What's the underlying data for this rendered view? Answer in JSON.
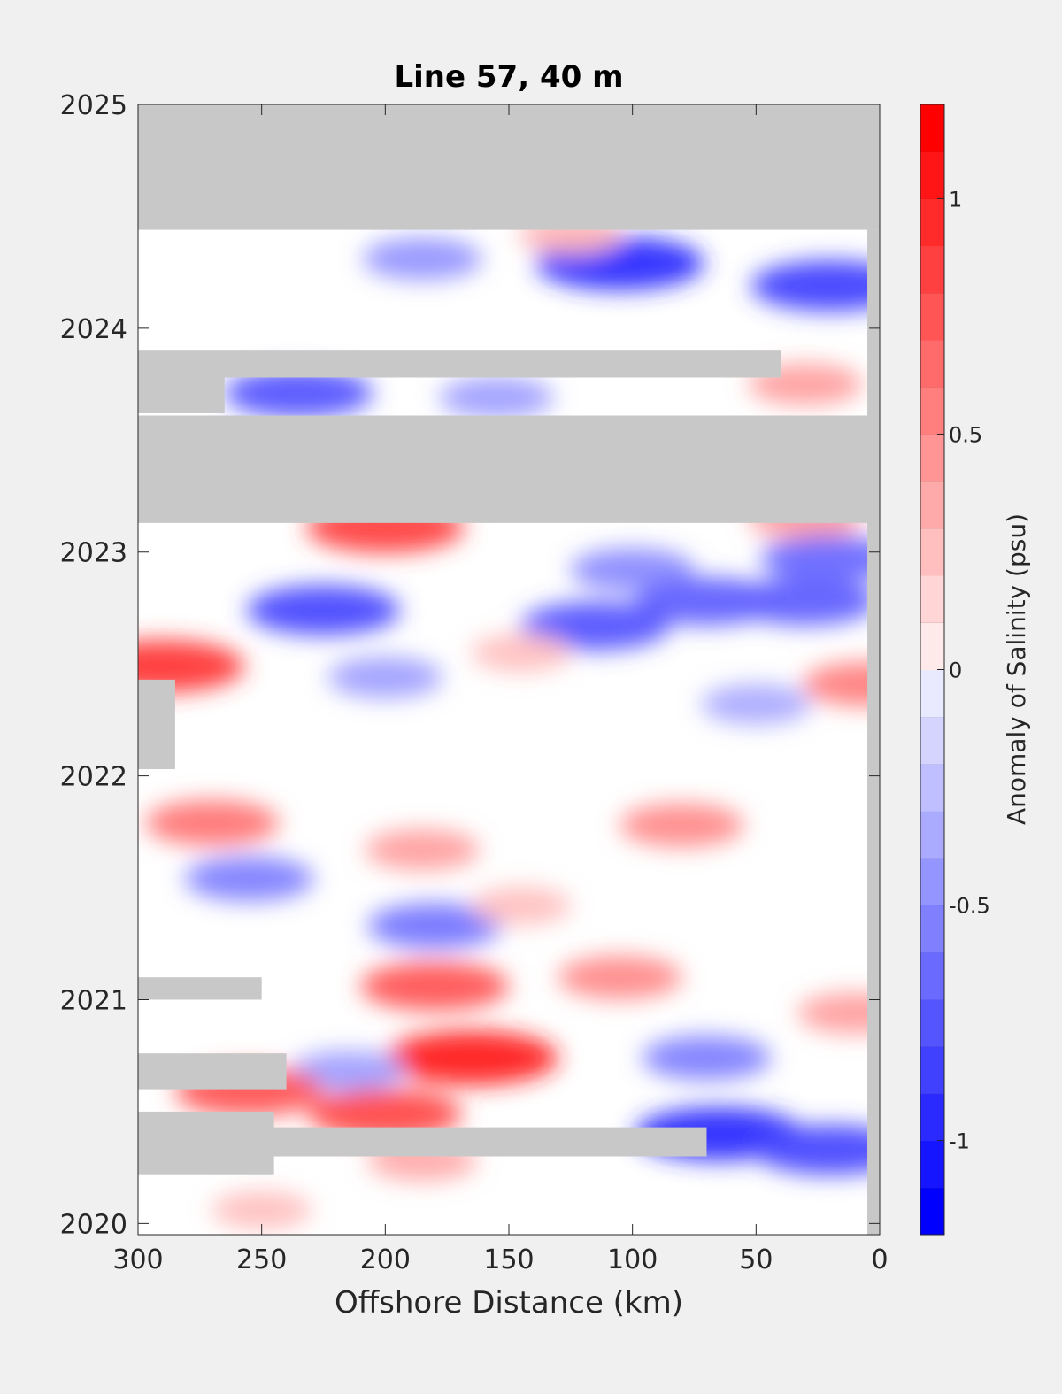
{
  "chart_data": {
    "type": "heatmap",
    "title": "Line 57, 40 m",
    "xlabel": "Offshore Distance (km)",
    "ylabel": "",
    "xlim": [
      300,
      0
    ],
    "ylim": [
      2019.95,
      2025.0
    ],
    "x_ticks": [
      300,
      250,
      200,
      150,
      100,
      50,
      0
    ],
    "y_ticks": [
      2020,
      2021,
      2022,
      2023,
      2024,
      2025
    ],
    "colorbar": {
      "label": "Anomaly of Salinity (psu)",
      "range": [
        -1.2,
        1.2
      ],
      "ticks": [
        -1,
        -0.5,
        0,
        0.5,
        1
      ],
      "tick_labels": [
        "-1",
        "-0.5",
        "0",
        "0.5",
        "1"
      ],
      "levels": 24,
      "cmap": "blue-white-red",
      "negative_color": "#0000ff",
      "zero_color": "#ffffff",
      "positive_color": "#ff0000"
    },
    "missing_color": "#c8c8c8",
    "no_data_ranges": [
      {
        "x": [
          300,
          0
        ],
        "t": [
          2024.44,
          2025.0
        ]
      },
      {
        "x": [
          300,
          0
        ],
        "t": [
          2023.13,
          2023.61
        ]
      },
      {
        "x": [
          300,
          40
        ],
        "t": [
          2023.78,
          2023.9
        ]
      },
      {
        "x": [
          300,
          265
        ],
        "t": [
          2023.62,
          2023.78
        ]
      },
      {
        "x": [
          300,
          70
        ],
        "t": [
          2020.3,
          2020.43
        ]
      },
      {
        "x": [
          300,
          245
        ],
        "t": [
          2020.22,
          2020.5
        ]
      },
      {
        "x": [
          300,
          240
        ],
        "t": [
          2020.6,
          2020.76
        ]
      },
      {
        "x": [
          300,
          250
        ],
        "t": [
          2021.0,
          2021.1
        ]
      },
      {
        "x": [
          300,
          285
        ],
        "t": [
          2022.03,
          2022.43
        ]
      },
      {
        "x": [
          5,
          0
        ],
        "t": [
          2019.95,
          2024.44
        ]
      }
    ],
    "anomaly_features": [
      {
        "x": 105,
        "t": 2024.29,
        "value": -1.0
      },
      {
        "x": 20,
        "t": 2024.19,
        "value": -0.9
      },
      {
        "x": 185,
        "t": 2024.31,
        "value": -0.5
      },
      {
        "x": 125,
        "t": 2024.42,
        "value": 0.35
      },
      {
        "x": 235,
        "t": 2023.71,
        "value": -0.8
      },
      {
        "x": 155,
        "t": 2023.69,
        "value": -0.45
      },
      {
        "x": 30,
        "t": 2023.75,
        "value": 0.45
      },
      {
        "x": 200,
        "t": 2023.11,
        "value": 0.9
      },
      {
        "x": 30,
        "t": 2023.15,
        "value": 0.45
      },
      {
        "x": 20,
        "t": 2022.97,
        "value": -0.7
      },
      {
        "x": 100,
        "t": 2022.92,
        "value": -0.55
      },
      {
        "x": 225,
        "t": 2022.74,
        "value": -0.85
      },
      {
        "x": 70,
        "t": 2022.78,
        "value": -0.75
      },
      {
        "x": 115,
        "t": 2022.67,
        "value": -0.8
      },
      {
        "x": 290,
        "t": 2022.49,
        "value": 0.95
      },
      {
        "x": 145,
        "t": 2022.55,
        "value": 0.3
      },
      {
        "x": 5,
        "t": 2022.41,
        "value": 0.6
      },
      {
        "x": 30,
        "t": 2022.78,
        "value": -0.75
      },
      {
        "x": 50,
        "t": 2022.32,
        "value": -0.4
      },
      {
        "x": 200,
        "t": 2022.44,
        "value": -0.45
      },
      {
        "x": 270,
        "t": 2021.79,
        "value": 0.65
      },
      {
        "x": 80,
        "t": 2021.78,
        "value": 0.55
      },
      {
        "x": 185,
        "t": 2021.67,
        "value": 0.45
      },
      {
        "x": 255,
        "t": 2021.54,
        "value": -0.6
      },
      {
        "x": 180,
        "t": 2021.33,
        "value": -0.65
      },
      {
        "x": 145,
        "t": 2021.42,
        "value": 0.3
      },
      {
        "x": 180,
        "t": 2021.06,
        "value": 0.8
      },
      {
        "x": 105,
        "t": 2021.1,
        "value": 0.55
      },
      {
        "x": 10,
        "t": 2020.94,
        "value": 0.45
      },
      {
        "x": 165,
        "t": 2020.74,
        "value": 1.05
      },
      {
        "x": 70,
        "t": 2020.74,
        "value": -0.6
      },
      {
        "x": 215,
        "t": 2020.68,
        "value": -0.45
      },
      {
        "x": 255,
        "t": 2020.59,
        "value": 0.8
      },
      {
        "x": 200,
        "t": 2020.49,
        "value": 0.85
      },
      {
        "x": 65,
        "t": 2020.4,
        "value": -1.0
      },
      {
        "x": 20,
        "t": 2020.33,
        "value": -0.85
      },
      {
        "x": 185,
        "t": 2020.28,
        "value": 0.4
      },
      {
        "x": 250,
        "t": 2020.06,
        "value": 0.3
      }
    ]
  }
}
